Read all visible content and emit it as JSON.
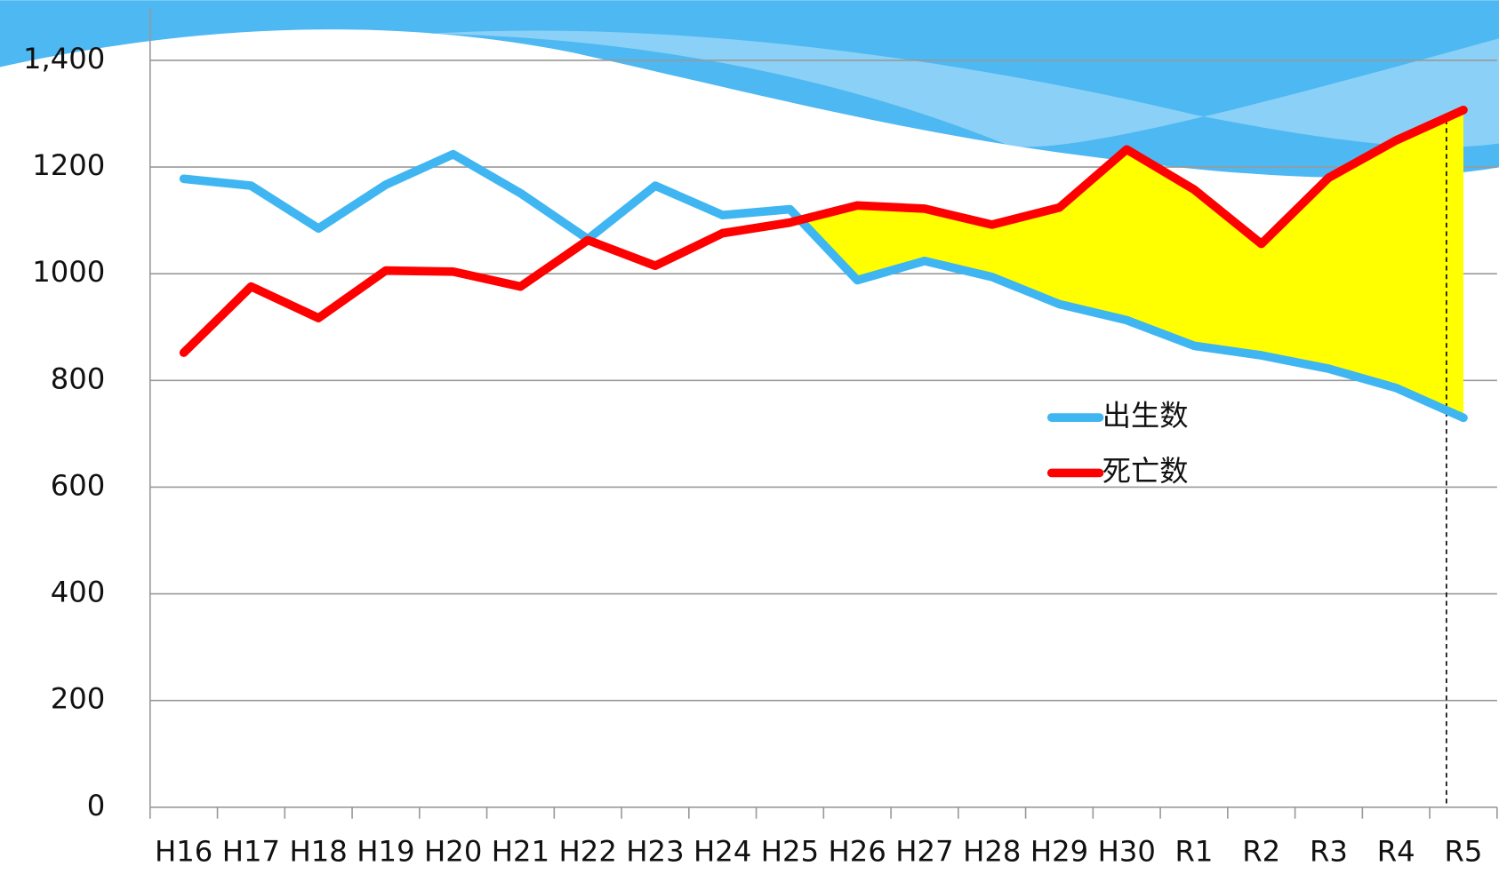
{
  "chart_data": {
    "type": "line",
    "categories": [
      "H16",
      "H17",
      "H18",
      "H19",
      "H20",
      "H21",
      "H22",
      "H23",
      "H24",
      "H25",
      "H26",
      "H27",
      "H28",
      "H29",
      "H30",
      "R1",
      "R2",
      "R3",
      "R4",
      "R5"
    ],
    "series": [
      {
        "name": "出生数",
        "color": "#3fb6f2",
        "values": [
          1178,
          1165,
          1085,
          1167,
          1224,
          1151,
          1065,
          1165,
          1110,
          1121,
          988,
          1024,
          994,
          943,
          913,
          865,
          847,
          822,
          786,
          730
        ]
      },
      {
        "name": "死亡数",
        "color": "#ff0000",
        "values": [
          852,
          976,
          917,
          1006,
          1004,
          976,
          1063,
          1015,
          1076,
          1096,
          1128,
          1122,
          1092,
          1124,
          1233,
          1158,
          1056,
          1180,
          1250,
          1307
        ]
      }
    ],
    "fill_color": "#ffff00",
    "ylim": [
      0,
      1400
    ],
    "yticks": [
      0,
      200,
      400,
      600,
      800,
      1000,
      1200,
      {
        "value": 1400,
        "label": "1,400"
      }
    ],
    "grid": true
  }
}
